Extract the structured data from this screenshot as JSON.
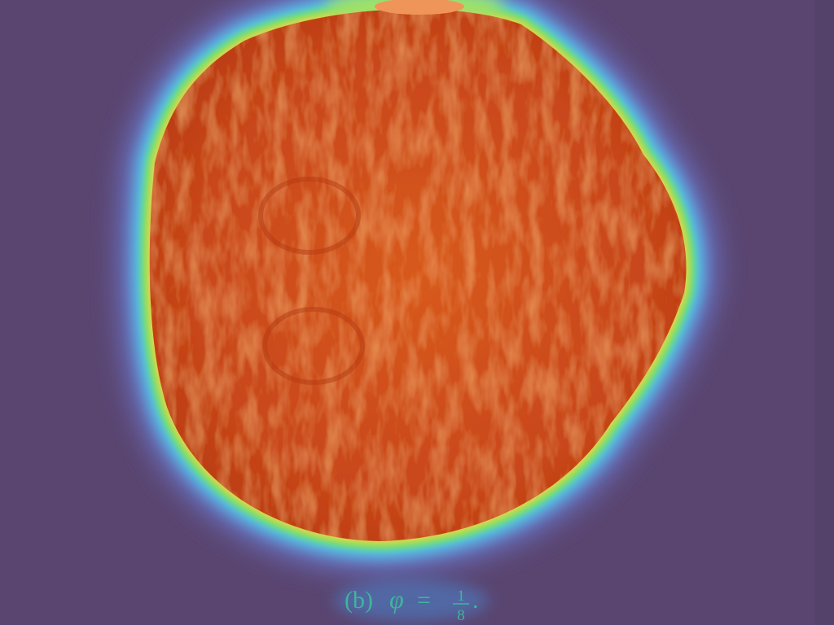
{
  "caption": {
    "label": "(b)",
    "symbol": "φ",
    "relation": "=",
    "numerator": "1",
    "denominator": "8",
    "end": "."
  }
}
